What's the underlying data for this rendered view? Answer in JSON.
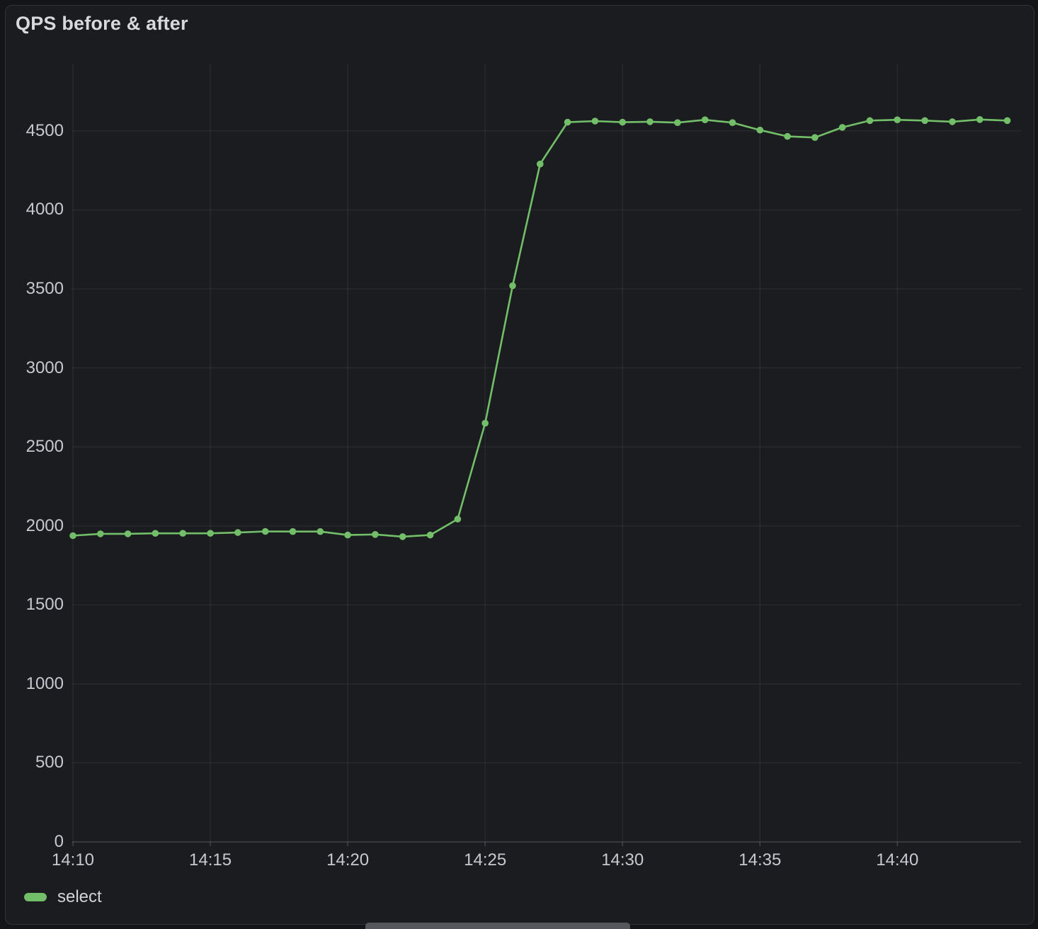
{
  "panel": {
    "title": "QPS before & after"
  },
  "legend": {
    "items": [
      {
        "label": "select",
        "color": "#73bf69"
      }
    ]
  },
  "colors": {
    "page_bg": "#141518",
    "panel_bg": "#1a1c20",
    "panel_border": "#2f3237",
    "title_text": "#d8d9dc",
    "tick_text": "#c7c8d0",
    "grid_line": "rgba(204,204,220,0.08)",
    "zero_line": "rgba(204,204,220,0.22)",
    "series_green": "#73bf69",
    "legend_text": "#d2d3d8",
    "scrollbar_thumb": "#55575c"
  },
  "chart_data": {
    "type": "line",
    "title": "QPS before & after",
    "xlabel": "",
    "ylabel": "",
    "grid": true,
    "point_markers": true,
    "legend_position": "bottom-left",
    "x_step_minutes": 1,
    "x_times": [
      "14:10",
      "14:11",
      "14:12",
      "14:13",
      "14:14",
      "14:15",
      "14:16",
      "14:17",
      "14:18",
      "14:19",
      "14:20",
      "14:21",
      "14:22",
      "14:23",
      "14:24",
      "14:25",
      "14:26",
      "14:27",
      "14:28",
      "14:29",
      "14:30",
      "14:31",
      "14:32",
      "14:33",
      "14:34",
      "14:35",
      "14:36",
      "14:37",
      "14:38",
      "14:39",
      "14:40",
      "14:41",
      "14:42",
      "14:43",
      "14:44"
    ],
    "series": [
      {
        "name": "select",
        "color": "#73bf69",
        "values": [
          1938,
          1950,
          1950,
          1953,
          1953,
          1953,
          1958,
          1965,
          1964,
          1964,
          1942,
          1946,
          1932,
          1942,
          2043,
          2650,
          3520,
          4290,
          4555,
          4562,
          4555,
          4558,
          4552,
          4570,
          4552,
          4505,
          4465,
          4458,
          4522,
          4565,
          4570,
          4565,
          4558,
          4572,
          4565
        ]
      }
    ],
    "x_tick_labels": [
      "14:10",
      "14:15",
      "14:20",
      "14:25",
      "14:30",
      "14:35",
      "14:40"
    ],
    "x_tick_minutes": [
      0,
      5,
      10,
      15,
      20,
      25,
      30
    ],
    "y_ticks": [
      0,
      500,
      1000,
      1500,
      2000,
      2500,
      3000,
      3500,
      4000,
      4500
    ],
    "xlim_minutes": [
      0,
      34.5
    ],
    "ylim": [
      0,
      4925
    ]
  }
}
